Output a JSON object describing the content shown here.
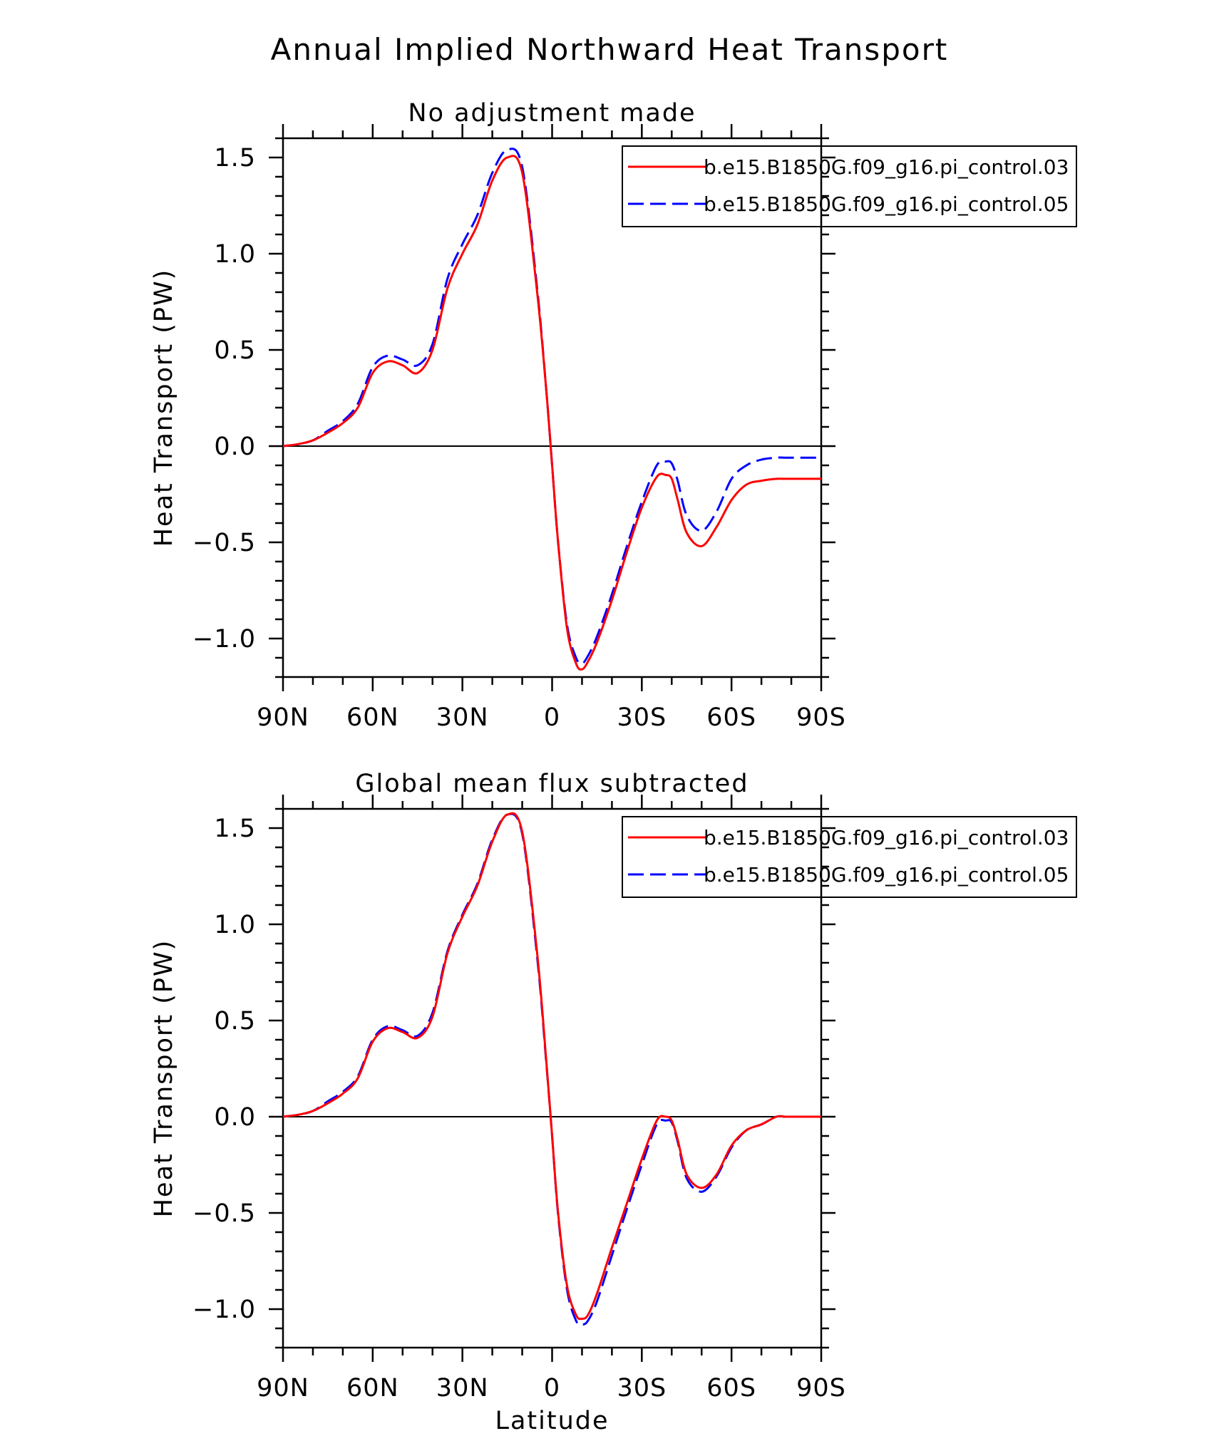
{
  "figure": {
    "title": "Annual Implied Northward Heat Transport"
  },
  "colors": {
    "series_03": "#ff0000",
    "series_05": "#0000ff",
    "axes": "#000000"
  },
  "chart_data": [
    {
      "type": "line",
      "title": "No adjustment made",
      "xlabel": "",
      "ylabel": "Heat Transport (PW)",
      "xlim": [
        90,
        -90
      ],
      "ylim": [
        -1.2,
        1.6
      ],
      "x_ticks": [
        90,
        60,
        30,
        0,
        -30,
        -60,
        -90
      ],
      "x_tick_labels": [
        "90N",
        "60N",
        "30N",
        "0",
        "30S",
        "60S",
        "90S"
      ],
      "y_ticks": [
        -1.0,
        -0.5,
        0.0,
        0.5,
        1.0,
        1.5
      ],
      "y_tick_labels": [
        "−1.0",
        "−0.5",
        "0.0",
        "0.5",
        "1.0",
        "1.5"
      ],
      "zero_line": true,
      "grid": false,
      "legend": "top-right",
      "series": [
        {
          "name": "b.e15.B1850G.f09_g16.pi_control.03",
          "style": "solid",
          "color": "#ff0000",
          "x": [
            90,
            85,
            80,
            75,
            70,
            65,
            60,
            55,
            50,
            45,
            40,
            35,
            30,
            25,
            20,
            15,
            10,
            5,
            2,
            0,
            -2,
            -5,
            -8,
            -10,
            -12,
            -15,
            -20,
            -25,
            -30,
            -35,
            -38,
            -40,
            -42,
            -45,
            -50,
            -55,
            -60,
            -65,
            -70,
            -75,
            -78,
            -80,
            -85,
            -90
          ],
          "y": [
            0.0,
            0.01,
            0.03,
            0.07,
            0.12,
            0.2,
            0.38,
            0.44,
            0.42,
            0.38,
            0.5,
            0.82,
            1.0,
            1.15,
            1.38,
            1.5,
            1.42,
            0.8,
            0.3,
            -0.1,
            -0.5,
            -0.95,
            -1.13,
            -1.16,
            -1.12,
            -1.02,
            -0.8,
            -0.55,
            -0.32,
            -0.16,
            -0.15,
            -0.17,
            -0.28,
            -0.45,
            -0.52,
            -0.42,
            -0.28,
            -0.2,
            -0.18,
            -0.17,
            -0.17,
            -0.17,
            -0.17,
            -0.17
          ]
        },
        {
          "name": "b.e15.B1850G.f09_g16.pi_control.05",
          "style": "dashed",
          "color": "#0000ff",
          "x": [
            90,
            85,
            80,
            75,
            70,
            65,
            60,
            55,
            50,
            45,
            40,
            35,
            30,
            25,
            20,
            15,
            10,
            5,
            2,
            0,
            -2,
            -5,
            -8,
            -10,
            -12,
            -15,
            -20,
            -25,
            -30,
            -35,
            -38,
            -40,
            -42,
            -45,
            -50,
            -55,
            -60,
            -65,
            -70,
            -75,
            -78,
            -80,
            -85,
            -90
          ],
          "y": [
            0.0,
            0.01,
            0.03,
            0.08,
            0.13,
            0.22,
            0.41,
            0.47,
            0.45,
            0.42,
            0.53,
            0.87,
            1.05,
            1.2,
            1.42,
            1.54,
            1.45,
            0.82,
            0.3,
            -0.1,
            -0.5,
            -0.93,
            -1.1,
            -1.13,
            -1.09,
            -0.99,
            -0.77,
            -0.52,
            -0.29,
            -0.1,
            -0.08,
            -0.09,
            -0.18,
            -0.36,
            -0.44,
            -0.34,
            -0.17,
            -0.1,
            -0.07,
            -0.06,
            -0.06,
            -0.06,
            -0.06,
            -0.06
          ]
        }
      ]
    },
    {
      "type": "line",
      "title": "Global mean flux subtracted",
      "xlabel": "Latitude",
      "ylabel": "Heat Transport (PW)",
      "xlim": [
        90,
        -90
      ],
      "ylim": [
        -1.2,
        1.6
      ],
      "x_ticks": [
        90,
        60,
        30,
        0,
        -30,
        -60,
        -90
      ],
      "x_tick_labels": [
        "90N",
        "60N",
        "30N",
        "0",
        "30S",
        "60S",
        "90S"
      ],
      "y_ticks": [
        -1.0,
        -0.5,
        0.0,
        0.5,
        1.0,
        1.5
      ],
      "y_tick_labels": [
        "−1.0",
        "−0.5",
        "0.0",
        "0.5",
        "1.0",
        "1.5"
      ],
      "zero_line": true,
      "grid": false,
      "legend": "top-right",
      "series": [
        {
          "name": "b.e15.B1850G.f09_g16.pi_control.03",
          "style": "solid",
          "color": "#ff0000",
          "x": [
            90,
            85,
            80,
            75,
            70,
            65,
            60,
            55,
            50,
            45,
            40,
            35,
            30,
            25,
            20,
            15,
            10,
            5,
            2,
            0,
            -2,
            -5,
            -8,
            -10,
            -12,
            -15,
            -20,
            -25,
            -30,
            -35,
            -38,
            -40,
            -42,
            -45,
            -50,
            -55,
            -60,
            -65,
            -70,
            -75,
            -78,
            -80,
            -85,
            -90
          ],
          "y": [
            0.0,
            0.01,
            0.03,
            0.07,
            0.12,
            0.2,
            0.39,
            0.46,
            0.44,
            0.41,
            0.52,
            0.85,
            1.04,
            1.2,
            1.43,
            1.57,
            1.48,
            0.85,
            0.3,
            -0.1,
            -0.5,
            -0.88,
            -1.03,
            -1.05,
            -1.03,
            -0.92,
            -0.68,
            -0.45,
            -0.22,
            -0.02,
            0.0,
            -0.02,
            -0.12,
            -0.3,
            -0.37,
            -0.3,
            -0.15,
            -0.07,
            -0.04,
            0.0,
            0.0,
            0.0,
            0.0,
            0.0
          ]
        },
        {
          "name": "b.e15.B1850G.f09_g16.pi_control.05",
          "style": "dashed",
          "color": "#0000ff",
          "x": [
            90,
            85,
            80,
            75,
            70,
            65,
            60,
            55,
            50,
            45,
            40,
            35,
            30,
            25,
            20,
            15,
            10,
            5,
            2,
            0,
            -2,
            -5,
            -8,
            -10,
            -12,
            -15,
            -20,
            -25,
            -30,
            -35,
            -38,
            -40,
            -42,
            -45,
            -50,
            -55,
            -60,
            -65,
            -70,
            -75,
            -78,
            -80,
            -85,
            -90
          ],
          "y": [
            0.0,
            0.01,
            0.03,
            0.08,
            0.13,
            0.21,
            0.4,
            0.47,
            0.45,
            0.42,
            0.54,
            0.86,
            1.05,
            1.21,
            1.44,
            1.57,
            1.47,
            0.83,
            0.29,
            -0.1,
            -0.51,
            -0.9,
            -1.06,
            -1.08,
            -1.06,
            -0.96,
            -0.72,
            -0.48,
            -0.25,
            -0.04,
            -0.02,
            -0.03,
            -0.13,
            -0.32,
            -0.39,
            -0.31,
            -0.16,
            -0.07,
            -0.04,
            0.0,
            0.0,
            0.0,
            0.0,
            0.0
          ]
        }
      ]
    }
  ]
}
